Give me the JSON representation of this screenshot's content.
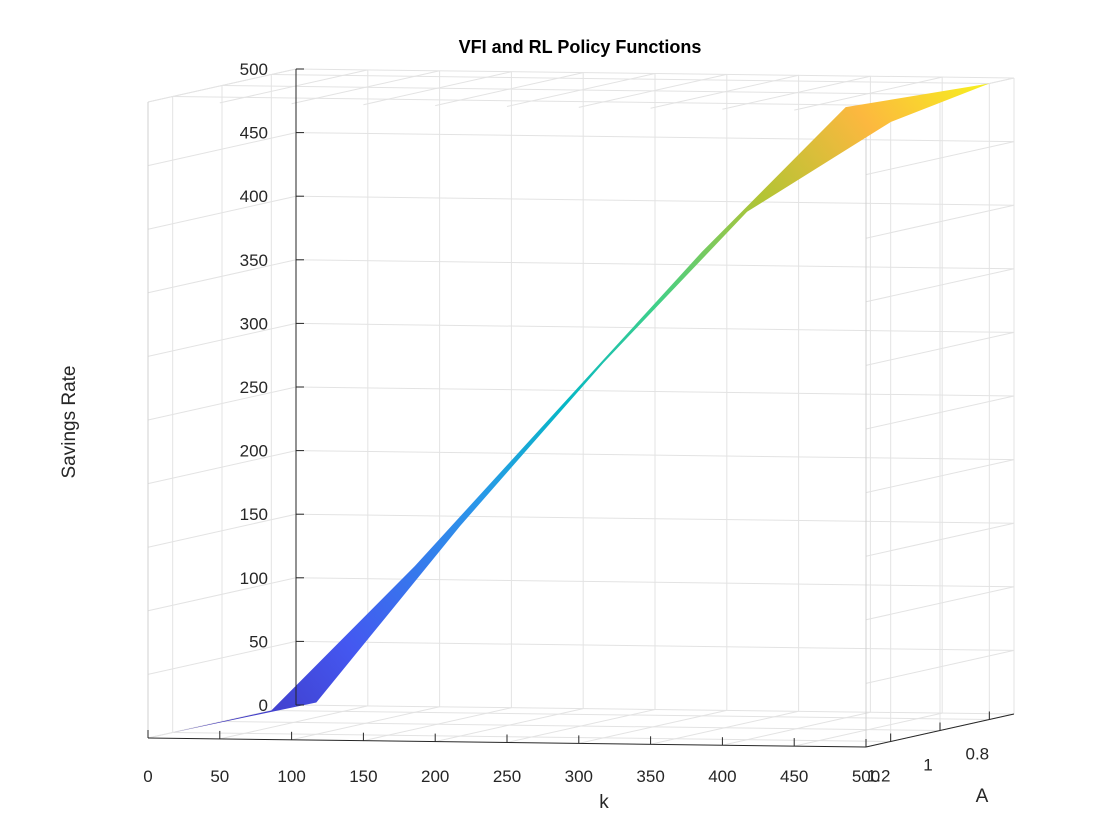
{
  "chart_data": {
    "type": "surface",
    "title": "VFI and RL Policy Functions",
    "xlabel": "k",
    "ylabel": "A",
    "zlabel": "Savings Rate",
    "xlim": [
      0,
      500
    ],
    "ylim": [
      0.7,
      1.3
    ],
    "zlim": [
      0,
      500
    ],
    "x_ticks": [
      "0",
      "50",
      "100",
      "150",
      "200",
      "250",
      "300",
      "350",
      "400",
      "450",
      "500"
    ],
    "y_ticks": [
      "1.2",
      "1",
      "0.8"
    ],
    "z_ticks": [
      "0",
      "50",
      "100",
      "150",
      "200",
      "250",
      "300",
      "350",
      "400",
      "450",
      "500"
    ],
    "grid": true,
    "colormap": "parula",
    "series": [
      {
        "k": [
          0,
          100,
          200,
          300,
          400,
          500
        ],
        "A": [
          0.8,
          1.2
        ],
        "z_at_A_0_8": [
          0,
          115,
          240,
          365,
          480,
          500
        ],
        "z_at_A_1_2": [
          0,
          25,
          165,
          295,
          415,
          487
        ]
      }
    ]
  }
}
